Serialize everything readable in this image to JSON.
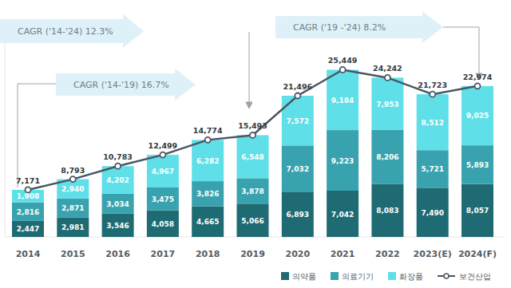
{
  "chart_data": {
    "type": "bar",
    "stacked": true,
    "data_labels": true,
    "tick_labels": "x",
    "grid": false,
    "legend": "bottom",
    "categories": [
      "2014",
      "2015",
      "2016",
      "2017",
      "2018",
      "2019",
      "2020",
      "2021",
      "2022",
      "2023(E)",
      "2024(F)"
    ],
    "ylim": [
      0,
      30000
    ],
    "yticks": [],
    "annotations": [
      {
        "text": "CAGR ('14-'24) 12.3%"
      },
      {
        "text": "CAGR ('14-'19) 16.7%"
      },
      {
        "text": "CAGR ('19 -'24) 8.2%"
      }
    ],
    "series": [
      {
        "name": "의약품",
        "type": "bar",
        "color": "#1f6b73",
        "values": [
          2447,
          2981,
          3546,
          4058,
          4665,
          5066,
          6893,
          7042,
          8083,
          7490,
          8057
        ],
        "value_labels": [
          "2,447",
          "2,981",
          "3,546",
          "4,058",
          "4,665",
          "5,066",
          "6,893",
          "7,042",
          "8,083",
          "7,490",
          "8,057"
        ]
      },
      {
        "name": "의료기기",
        "type": "bar",
        "color": "#38a3ae",
        "values": [
          2816,
          2871,
          3034,
          3475,
          3826,
          3878,
          7032,
          9223,
          8206,
          5721,
          5893
        ],
        "value_labels": [
          "2,816",
          "2,871",
          "3,034",
          "3,475",
          "3,826",
          "3,878",
          "7,032",
          "9,223",
          "8,206",
          "5,721",
          "5,893"
        ]
      },
      {
        "name": "화장품",
        "type": "bar",
        "color": "#5fdfe8",
        "values": [
          1908,
          2940,
          4202,
          4967,
          6282,
          6548,
          7572,
          9184,
          7953,
          8512,
          9025
        ],
        "value_labels": [
          "1,908",
          "2,940",
          "4,202",
          "4,967",
          "6,282",
          "6,548",
          "7,572",
          "9,184",
          "7,953",
          "8,512",
          "9,025"
        ]
      },
      {
        "name": "보건산업",
        "type": "line",
        "color": "#4a5663",
        "marker": "circle",
        "values": [
          7171,
          8793,
          10783,
          12499,
          14774,
          15493,
          21496,
          25449,
          24242,
          21723,
          22974
        ],
        "value_labels": [
          "7,171",
          "8,793",
          "10,783",
          "12,499",
          "14,774",
          "15,493",
          "21,496",
          "25,449",
          "24,242",
          "21,723",
          "22,974"
        ]
      }
    ]
  }
}
